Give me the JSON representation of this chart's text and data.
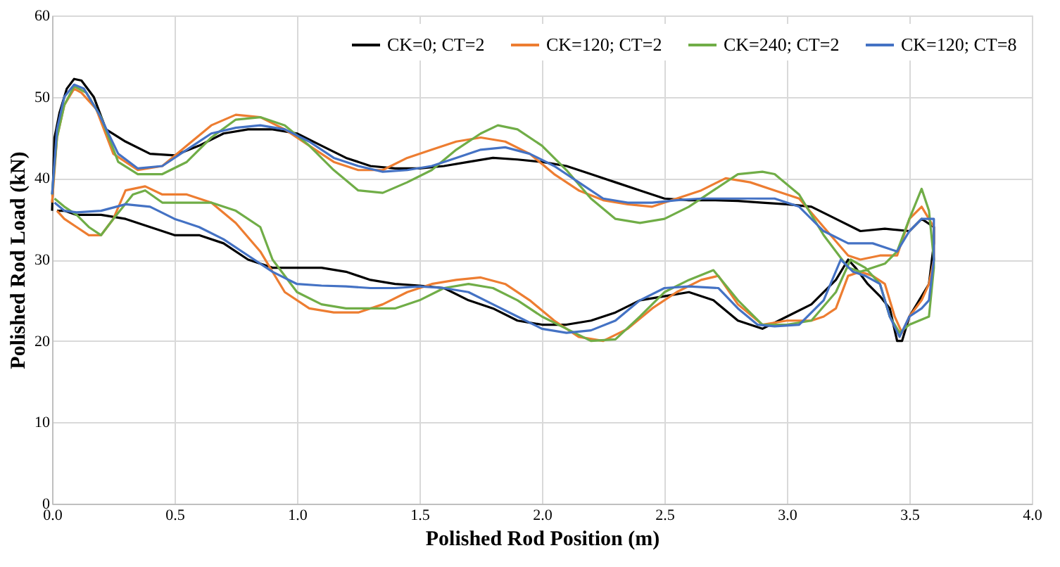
{
  "chart_data": {
    "type": "line",
    "xlabel": "Polished Rod Position (m)",
    "ylabel": "Polished Rod Load (kN)",
    "xlim": [
      0,
      4
    ],
    "ylim": [
      0,
      60
    ],
    "xticks": [
      {
        "value": 0,
        "label": "0.0"
      },
      {
        "value": 0.5,
        "label": "0.5"
      },
      {
        "value": 1,
        "label": "1.0"
      },
      {
        "value": 1.5,
        "label": "1.5"
      },
      {
        "value": 2,
        "label": "2.0"
      },
      {
        "value": 2.5,
        "label": "2.5"
      },
      {
        "value": 3,
        "label": "3.0"
      },
      {
        "value": 3.5,
        "label": "3.5"
      },
      {
        "value": 4,
        "label": "4.0"
      }
    ],
    "yticks": [
      0,
      10,
      20,
      30,
      40,
      50,
      60
    ],
    "grid": true,
    "legend": "top right",
    "marker": "none",
    "line_style": "solid",
    "series": [
      {
        "name": "CK=0; CT=2",
        "color": "#000000",
        "x": [
          0,
          0.01,
          0.03,
          0.06,
          0.09,
          0.12,
          0.17,
          0.22,
          0.3,
          0.4,
          0.5,
          0.6,
          0.7,
          0.8,
          0.9,
          1.0,
          1.1,
          1.2,
          1.3,
          1.4,
          1.5,
          1.6,
          1.7,
          1.8,
          1.9,
          2.0,
          2.1,
          2.2,
          2.3,
          2.4,
          2.5,
          2.6,
          2.7,
          2.8,
          2.9,
          3.0,
          3.1,
          3.2,
          3.3,
          3.4,
          3.5,
          3.55,
          3.6,
          3.6,
          3.58,
          3.55,
          3.5,
          3.47,
          3.45,
          3.42,
          3.38,
          3.33,
          3.28,
          3.25,
          3.2,
          3.1,
          3.0,
          2.9,
          2.8,
          2.7,
          2.6,
          2.5,
          2.4,
          2.3,
          2.2,
          2.1,
          2.0,
          1.9,
          1.8,
          1.7,
          1.6,
          1.5,
          1.4,
          1.3,
          1.2,
          1.1,
          1.0,
          0.9,
          0.8,
          0.7,
          0.6,
          0.5,
          0.4,
          0.3,
          0.2,
          0.1,
          0.05,
          0.02
        ],
        "values": [
          36,
          45,
          48,
          51,
          52.2,
          52,
          50,
          46,
          44.5,
          43,
          42.8,
          44,
          45.5,
          46,
          46,
          45.5,
          44,
          42.5,
          41.5,
          41.2,
          41.2,
          41.5,
          42,
          42.5,
          42.3,
          42,
          41.5,
          40.5,
          39.5,
          38.5,
          37.5,
          37.3,
          37.3,
          37.2,
          37,
          36.8,
          36.5,
          35,
          33.5,
          33.8,
          33.5,
          35,
          34,
          32,
          27,
          25.5,
          23,
          20,
          20,
          24,
          25.5,
          27,
          29,
          30,
          27.5,
          24.5,
          23,
          21.5,
          22.5,
          25,
          26,
          25.5,
          25,
          23.5,
          22.5,
          22,
          22,
          22.5,
          24,
          25,
          26.5,
          26.8,
          27,
          27.5,
          28.5,
          29,
          29,
          29,
          30,
          32,
          33,
          33,
          34,
          35,
          35.5,
          35.5,
          36,
          36
        ]
      },
      {
        "name": "CK=120; CT=2",
        "color": "#ed7d31",
        "x": [
          0,
          0.02,
          0.05,
          0.09,
          0.12,
          0.18,
          0.25,
          0.35,
          0.45,
          0.55,
          0.65,
          0.75,
          0.85,
          0.95,
          1.05,
          1.15,
          1.25,
          1.35,
          1.45,
          1.55,
          1.65,
          1.75,
          1.85,
          1.95,
          2.05,
          2.15,
          2.25,
          2.35,
          2.45,
          2.55,
          2.65,
          2.75,
          2.85,
          2.95,
          3.05,
          3.15,
          3.25,
          3.3,
          3.38,
          3.45,
          3.5,
          3.55,
          3.6,
          3.6,
          3.58,
          3.55,
          3.5,
          3.47,
          3.44,
          3.4,
          3.35,
          3.3,
          3.25,
          3.2,
          3.15,
          3.1,
          3.0,
          2.9,
          2.8,
          2.72,
          2.65,
          2.55,
          2.45,
          2.35,
          2.25,
          2.15,
          2.05,
          1.95,
          1.85,
          1.75,
          1.65,
          1.55,
          1.45,
          1.35,
          1.25,
          1.15,
          1.05,
          0.95,
          0.85,
          0.75,
          0.65,
          0.55,
          0.45,
          0.38,
          0.3,
          0.25,
          0.2,
          0.15,
          0.1,
          0.05,
          0.02
        ],
        "values": [
          37,
          45,
          49,
          51,
          50.5,
          48.5,
          43,
          41,
          41.5,
          44,
          46.5,
          47.8,
          47.5,
          46,
          44,
          42,
          41,
          41,
          42.5,
          43.5,
          44.5,
          45,
          44.5,
          43,
          40.5,
          38.5,
          37.3,
          36.8,
          36.5,
          37.5,
          38.5,
          40,
          39.5,
          38.5,
          37.5,
          34,
          30.5,
          30,
          30.5,
          30.5,
          35,
          36.5,
          34,
          30,
          27,
          25,
          23,
          21,
          23,
          27,
          28,
          28.5,
          28,
          24,
          23,
          22.5,
          22.5,
          22,
          24.5,
          28,
          27.5,
          26,
          24,
          21.5,
          20,
          20.5,
          22.5,
          25,
          27,
          27.8,
          27.5,
          27,
          26,
          24.5,
          23.5,
          23.5,
          24,
          26,
          31,
          34.5,
          37,
          38,
          38,
          39,
          38.5,
          35,
          33,
          33,
          34,
          35,
          36
        ]
      },
      {
        "name": "CK=240; CT=2",
        "color": "#70ad47",
        "x": [
          0,
          0.02,
          0.05,
          0.09,
          0.14,
          0.2,
          0.27,
          0.35,
          0.45,
          0.55,
          0.65,
          0.75,
          0.85,
          0.95,
          1.05,
          1.15,
          1.25,
          1.35,
          1.45,
          1.55,
          1.65,
          1.75,
          1.82,
          1.9,
          2.0,
          2.1,
          2.2,
          2.3,
          2.4,
          2.5,
          2.6,
          2.7,
          2.8,
          2.9,
          2.95,
          3.05,
          3.15,
          3.25,
          3.3,
          3.4,
          3.45,
          3.5,
          3.55,
          3.58,
          3.6,
          3.6,
          3.58,
          3.5,
          3.46,
          3.42,
          3.38,
          3.32,
          3.26,
          3.2,
          3.1,
          3.0,
          2.9,
          2.8,
          2.7,
          2.6,
          2.5,
          2.4,
          2.3,
          2.2,
          2.1,
          2.0,
          1.9,
          1.8,
          1.7,
          1.6,
          1.5,
          1.4,
          1.3,
          1.2,
          1.1,
          1.0,
          0.9,
          0.85,
          0.75,
          0.65,
          0.55,
          0.45,
          0.38,
          0.33,
          0.25,
          0.2,
          0.15,
          0.1,
          0.05,
          0.01
        ],
        "values": [
          38,
          45,
          49,
          51.3,
          50.5,
          47.5,
          42,
          40.5,
          40.5,
          42,
          45,
          47.2,
          47.5,
          46.5,
          44,
          41,
          38.5,
          38.2,
          39.5,
          41,
          43.5,
          45.5,
          46.5,
          46,
          44,
          41,
          37.5,
          35,
          34.5,
          35,
          36.5,
          38.5,
          40.5,
          40.8,
          40.5,
          38,
          33,
          29,
          28.5,
          29.5,
          31,
          35,
          38.7,
          36,
          30,
          29,
          23,
          22,
          21,
          23,
          27,
          29,
          30,
          26,
          22.5,
          22,
          22,
          25,
          28.7,
          27.5,
          26,
          23,
          20.2,
          20,
          21.5,
          23,
          25,
          26.5,
          27,
          26.5,
          25,
          24,
          24,
          24,
          24.5,
          26,
          30,
          34,
          36,
          37,
          37,
          37,
          38.5,
          38,
          35,
          33,
          34,
          35.5,
          36.5,
          37.5
        ]
      },
      {
        "name": "CK=120; CT=8",
        "color": "#4472c4",
        "x": [
          0,
          0.02,
          0.05,
          0.09,
          0.13,
          0.19,
          0.27,
          0.35,
          0.45,
          0.55,
          0.65,
          0.75,
          0.85,
          0.95,
          1.05,
          1.15,
          1.25,
          1.35,
          1.45,
          1.55,
          1.65,
          1.75,
          1.85,
          1.95,
          2.05,
          2.15,
          2.25,
          2.35,
          2.45,
          2.55,
          2.65,
          2.75,
          2.85,
          2.95,
          3.05,
          3.15,
          3.25,
          3.35,
          3.45,
          3.5,
          3.55,
          3.6,
          3.6,
          3.58,
          3.55,
          3.5,
          3.46,
          3.42,
          3.38,
          3.32,
          3.27,
          3.22,
          3.15,
          3.05,
          2.95,
          2.88,
          2.8,
          2.72,
          2.6,
          2.5,
          2.4,
          2.3,
          2.2,
          2.1,
          2.0,
          1.9,
          1.8,
          1.7,
          1.6,
          1.5,
          1.4,
          1.3,
          1.2,
          1.1,
          1.0,
          0.9,
          0.8,
          0.7,
          0.6,
          0.5,
          0.4,
          0.3,
          0.2,
          0.1,
          0.05,
          0.01
        ],
        "values": [
          38,
          46,
          50,
          51.5,
          51,
          48,
          43,
          41.2,
          41.5,
          43.5,
          45.5,
          46.2,
          46.5,
          46,
          44.5,
          42.5,
          41.5,
          40.8,
          41,
          41.5,
          42.5,
          43.5,
          43.8,
          43,
          41.5,
          39.5,
          37.5,
          37,
          37,
          37.3,
          37.5,
          37.5,
          37.5,
          37.5,
          36.5,
          33.5,
          32,
          32,
          31,
          33.5,
          35,
          35,
          30,
          25,
          24,
          23,
          20.5,
          23,
          27,
          28,
          28.5,
          30,
          25,
          22,
          21.8,
          22,
          24,
          26.5,
          26.7,
          26.5,
          25,
          22.5,
          21.3,
          21,
          21.5,
          23,
          24.5,
          26,
          26.5,
          26.7,
          26.5,
          26.5,
          26.7,
          26.8,
          27,
          28.5,
          30.5,
          32.5,
          34,
          35,
          36.5,
          36.8,
          36,
          35.8,
          36,
          37
        ]
      }
    ]
  }
}
